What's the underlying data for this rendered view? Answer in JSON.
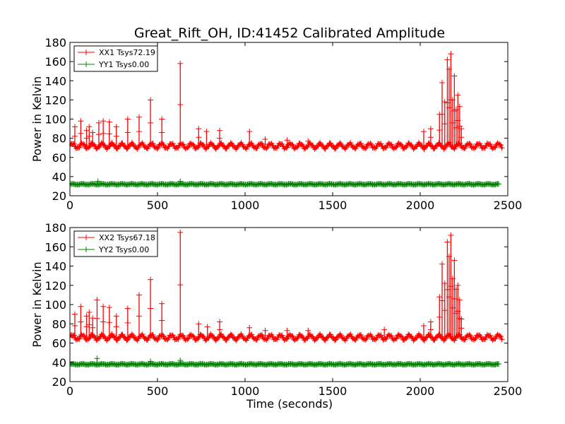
{
  "title": "Great_Rift_OH, ID:41452 Calibrated Amplitude",
  "xlabel": "Time (seconds)",
  "chart_data": [
    {
      "type": "line",
      "title": "Great_Rift_OH, ID:41452 Calibrated Amplitude",
      "xlabel": "",
      "ylabel": "Power in Kelvin",
      "xlim": [
        0,
        2500
      ],
      "ylim": [
        20,
        180
      ],
      "xticks": [
        0,
        500,
        1000,
        1500,
        2000,
        2500
      ],
      "yticks": [
        20,
        40,
        60,
        80,
        100,
        120,
        140,
        160,
        180
      ],
      "legend_position": "upper-left",
      "marker": "plus",
      "series": [
        {
          "name": "XX1 Tsys72.19",
          "color": "#ff0000",
          "baseline": 72,
          "ripple": 2.5,
          "x_range": [
            0,
            2470
          ],
          "spikes": [
            [
              28,
              92
            ],
            [
              62,
              98
            ],
            [
              95,
              88
            ],
            [
              110,
              92
            ],
            [
              130,
              86
            ],
            [
              165,
              96
            ],
            [
              190,
              98
            ],
            [
              225,
              97
            ],
            [
              265,
              92
            ],
            [
              330,
              100
            ],
            [
              395,
              102
            ],
            [
              460,
              120
            ],
            [
              525,
              100
            ],
            [
              630,
              158
            ],
            [
              735,
              90
            ],
            [
              780,
              87
            ],
            [
              855,
              88
            ],
            [
              1025,
              87
            ],
            [
              1115,
              79
            ],
            [
              1240,
              78
            ],
            [
              1360,
              77
            ],
            [
              2020,
              87
            ],
            [
              2060,
              90
            ],
            [
              2110,
              105
            ],
            [
              2125,
              138
            ],
            [
              2140,
              118
            ],
            [
              2155,
              162
            ],
            [
              2165,
              152
            ],
            [
              2175,
              168
            ],
            [
              2185,
              120
            ],
            [
              2195,
              145
            ],
            [
              2205,
              110
            ],
            [
              2215,
              125
            ],
            [
              2225,
              113
            ],
            [
              2235,
              90
            ]
          ]
        },
        {
          "name": "YY1 Tsys0.00",
          "color": "#008000",
          "baseline": 32,
          "ripple": 0.4,
          "x_range": [
            0,
            2450
          ],
          "spikes": [
            [
              160,
              35
            ],
            [
              630,
              35
            ]
          ]
        }
      ]
    },
    {
      "type": "line",
      "title": "",
      "xlabel": "Time (seconds)",
      "ylabel": "Power in Kelvin",
      "xlim": [
        0,
        2500
      ],
      "ylim": [
        20,
        180
      ],
      "xticks": [
        0,
        500,
        1000,
        1500,
        2000,
        2500
      ],
      "yticks": [
        20,
        40,
        60,
        80,
        100,
        120,
        140,
        160,
        180
      ],
      "legend_position": "upper-left",
      "marker": "plus",
      "series": [
        {
          "name": "XX2 Tsys67.18",
          "color": "#ff0000",
          "baseline": 66,
          "ripple": 2.5,
          "x_range": [
            0,
            2470
          ],
          "spikes": [
            [
              28,
              90
            ],
            [
              62,
              98
            ],
            [
              95,
              88
            ],
            [
              110,
              92
            ],
            [
              130,
              86
            ],
            [
              155,
              105
            ],
            [
              190,
              98
            ],
            [
              225,
              97
            ],
            [
              265,
              88
            ],
            [
              330,
              96
            ],
            [
              395,
              110
            ],
            [
              460,
              126
            ],
            [
              525,
              101
            ],
            [
              630,
              175
            ],
            [
              735,
              80
            ],
            [
              785,
              77
            ],
            [
              855,
              82
            ],
            [
              1025,
              76
            ],
            [
              1115,
              73
            ],
            [
              1240,
              73
            ],
            [
              1360,
              73
            ],
            [
              1795,
              74
            ],
            [
              2020,
              78
            ],
            [
              2060,
              82
            ],
            [
              2110,
              108
            ],
            [
              2125,
              142
            ],
            [
              2140,
              122
            ],
            [
              2155,
              165
            ],
            [
              2165,
              150
            ],
            [
              2175,
              172
            ],
            [
              2185,
              127
            ],
            [
              2195,
              146
            ],
            [
              2205,
              116
            ],
            [
              2215,
              120
            ],
            [
              2225,
              105
            ],
            [
              2235,
              85
            ]
          ]
        },
        {
          "name": "YY2 Tsys0.00",
          "color": "#008000",
          "baseline": 38,
          "ripple": 0.4,
          "x_range": [
            0,
            2450
          ],
          "spikes": [
            [
              155,
              44
            ],
            [
              460,
              41
            ],
            [
              630,
              42
            ]
          ]
        }
      ]
    }
  ]
}
